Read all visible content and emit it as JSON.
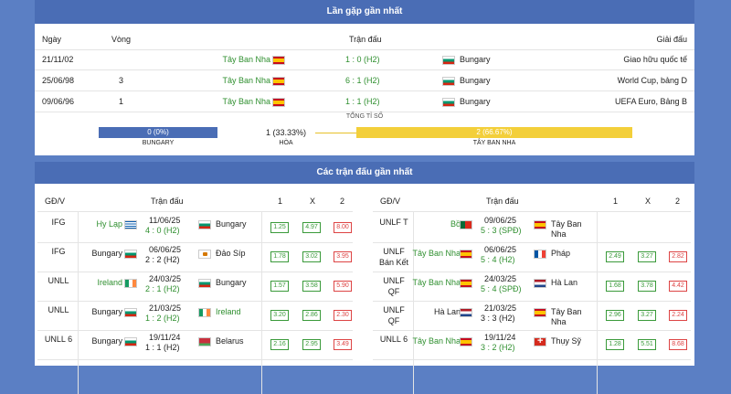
{
  "h2h": {
    "title": "Lần gặp gần nhất",
    "cols": {
      "date": "Ngày",
      "round": "Vòng",
      "match": "Trận đấu",
      "league": "Giải đấu"
    },
    "rows": [
      {
        "date": "21/11/02",
        "round": "",
        "home": "Tây Ban Nha",
        "score": "1 : 0 (H2)",
        "away": "Bungary",
        "league": "Giao hữu quốc tế"
      },
      {
        "date": "25/06/98",
        "round": "3",
        "home": "Tây Ban Nha",
        "score": "6 : 1 (H2)",
        "away": "Bungary",
        "league": "World Cup, bảng D"
      },
      {
        "date": "09/06/96",
        "round": "1",
        "home": "Tây Ban Nha",
        "score": "1 : 1 (H2)",
        "away": "Bungary",
        "league": "UEFA Euro, Bảng B"
      }
    ],
    "summary": {
      "title": "TỔNG TỈ SỐ",
      "left_value": "0 (0%)",
      "left_label": "BUNGARY",
      "mid_value": "1 (33.33%)",
      "mid_label": "HÒA",
      "right_value": "2 (66.67%)",
      "right_label": "TÂY BAN NHA",
      "left_pct": 0,
      "draw_pct": 33.33,
      "right_pct": 66.67
    }
  },
  "recent": {
    "title": "Các trận đấu gần nhất",
    "cols": {
      "league": "GĐ/V",
      "match": "Trận đấu",
      "o1": "1",
      "ox": "X",
      "o2": "2"
    },
    "left": [
      {
        "league": "IFG",
        "home": "Hy Lạp",
        "home_flag": "gr",
        "date": "11/06/25",
        "score": "4 : 0 (H2)",
        "away": "Bungary",
        "away_flag": "bg",
        "o1": "1.25",
        "ox": "4.97",
        "o2": "8.00",
        "hg": true,
        "ag": false,
        "sg": true
      },
      {
        "league": "IFG",
        "home": "Bungary",
        "home_flag": "bg",
        "date": "06/06/25",
        "score": "2 : 2 (H2)",
        "away": "Đảo Síp",
        "away_flag": "cy",
        "o1": "1.78",
        "ox": "3.02",
        "o2": "3.95",
        "hg": false,
        "ag": false,
        "sg": false
      },
      {
        "league": "UNLL",
        "home": "Ireland",
        "home_flag": "ie",
        "date": "24/03/25",
        "score": "2 : 1 (H2)",
        "away": "Bungary",
        "away_flag": "bg",
        "o1": "1.57",
        "ox": "3.58",
        "o2": "5.90",
        "hg": true,
        "ag": false,
        "sg": true
      },
      {
        "league": "UNLL",
        "home": "Bungary",
        "home_flag": "bg",
        "date": "21/03/25",
        "score": "1 : 2 (H2)",
        "away": "Ireland",
        "away_flag": "ie",
        "o1": "3.20",
        "ox": "2.86",
        "o2": "2.30",
        "hg": false,
        "ag": true,
        "sg": true
      },
      {
        "league": "UNLL 6",
        "home": "Bungary",
        "home_flag": "bg",
        "date": "19/11/24",
        "score": "1 : 1 (H2)",
        "away": "Belarus",
        "away_flag": "by",
        "o1": "2.16",
        "ox": "2.95",
        "o2": "3.49",
        "hg": false,
        "ag": false,
        "sg": false
      }
    ],
    "right": [
      {
        "league": "UNLF T",
        "home": "Bồ",
        "home_flag": "pt",
        "date": "09/06/25",
        "score": "5 : 3 (SPĐ)",
        "away": "Tây Ban Nha",
        "away_flag": "es",
        "o1": "",
        "ox": "",
        "o2": "",
        "hg": true,
        "ag": false,
        "sg": true
      },
      {
        "league": "UNLF Bán Kết",
        "home": "Tây Ban Nha",
        "home_flag": "es",
        "date": "06/06/25",
        "score": "5 : 4 (H2)",
        "away": "Pháp",
        "away_flag": "fr",
        "o1": "2.49",
        "ox": "3.27",
        "o2": "2.82",
        "hg": true,
        "ag": false,
        "sg": true
      },
      {
        "league": "UNLF QF",
        "home": "Tây Ban Nha",
        "home_flag": "es",
        "date": "24/03/25",
        "score": "5 : 4 (SPĐ)",
        "away": "Hà Lan",
        "away_flag": "nl",
        "o1": "1.68",
        "ox": "3.78",
        "o2": "4.42",
        "hg": true,
        "ag": false,
        "sg": true
      },
      {
        "league": "UNLF QF",
        "home": "Hà Lan",
        "home_flag": "nl",
        "date": "21/03/25",
        "score": "3 : 3 (H2)",
        "away": "Tây Ban Nha",
        "away_flag": "es",
        "o1": "2.96",
        "ox": "3.27",
        "o2": "2.24",
        "hg": false,
        "ag": false,
        "sg": false
      },
      {
        "league": "UNLL 6",
        "home": "Tây Ban Nha",
        "home_flag": "es",
        "date": "19/11/24",
        "score": "3 : 2 (H2)",
        "away": "Thụy Sỹ",
        "away_flag": "ch",
        "o1": "1.28",
        "ox": "5.51",
        "o2": "8.68",
        "hg": true,
        "ag": false,
        "sg": true
      }
    ]
  }
}
